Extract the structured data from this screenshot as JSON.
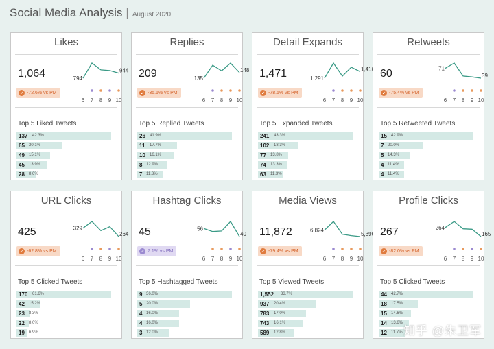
{
  "header": {
    "title": "Social Media Analysis",
    "separator": "|",
    "subtitle": "August 2020"
  },
  "colors": {
    "line": "#3a9a86",
    "dot_purple": "#9b8ad0",
    "dot_orange": "#e89a5e",
    "bar": "#d4e9e5",
    "badge_down": "#f8d9c6",
    "badge_up": "#e0d9f2"
  },
  "watermark": "知乎 @朱卫军",
  "chart_data": [
    {
      "type": "line",
      "title": "Likes",
      "value": "1,064",
      "change": "-72.6% vs PM",
      "direction": "down",
      "x": [
        "6",
        "7",
        "8",
        "9",
        "10"
      ],
      "y": [
        794,
        1240,
        1040,
        1020,
        944
      ],
      "first_label": "794",
      "last_label": "944",
      "dots": [
        "purple",
        "orange",
        "purple",
        "orange"
      ],
      "top_title": "Top 5 Liked Tweets",
      "bars": [
        {
          "value": "137",
          "pct": "42.3%",
          "share": 42.3
        },
        {
          "value": "65",
          "pct": "20.1%",
          "share": 20.1
        },
        {
          "value": "49",
          "pct": "15.1%",
          "share": 15.1
        },
        {
          "value": "45",
          "pct": "13.9%",
          "share": 13.9
        },
        {
          "value": "28",
          "pct": "8.6%",
          "share": 8.6
        }
      ]
    },
    {
      "type": "line",
      "title": "Replies",
      "value": "209",
      "change": "-35.1% vs PM",
      "direction": "down",
      "x": [
        "6",
        "7",
        "8",
        "9",
        "10"
      ],
      "y": [
        135,
        165,
        152,
        170,
        148
      ],
      "first_label": "135",
      "last_label": "148",
      "dots": [
        "purple",
        "orange",
        "orange",
        "orange"
      ],
      "top_title": "Top 5 Replied Tweets",
      "bars": [
        {
          "value": "26",
          "pct": "41.9%",
          "share": 41.9
        },
        {
          "value": "11",
          "pct": "17.7%",
          "share": 17.7
        },
        {
          "value": "10",
          "pct": "16.1%",
          "share": 16.1
        },
        {
          "value": "8",
          "pct": "12.9%",
          "share": 12.9
        },
        {
          "value": "7",
          "pct": "11.3%",
          "share": 11.3
        }
      ]
    },
    {
      "type": "line",
      "title": "Detail Expands",
      "value": "1,471",
      "change": "-78.5% vs PM",
      "direction": "down",
      "x": [
        "6",
        "7",
        "8",
        "9",
        "10"
      ],
      "y": [
        1291,
        1580,
        1330,
        1500,
        1416
      ],
      "first_label": "1,291",
      "last_label": "1,416",
      "dots": [
        "purple",
        "orange",
        "orange",
        "orange"
      ],
      "top_title": "Top 5 Expanded Tweets",
      "bars": [
        {
          "value": "241",
          "pct": "43.3%",
          "share": 43.3
        },
        {
          "value": "102",
          "pct": "18.3%",
          "share": 18.3
        },
        {
          "value": "77",
          "pct": "13.8%",
          "share": 13.8
        },
        {
          "value": "74",
          "pct": "13.3%",
          "share": 13.3
        },
        {
          "value": "63",
          "pct": "11.3%",
          "share": 11.3
        }
      ]
    },
    {
      "type": "line",
      "title": "Retweets",
      "value": "60",
      "change": "-75.4% vs PM",
      "direction": "down",
      "x": [
        "6",
        "7",
        "8",
        "9",
        "10"
      ],
      "y": [
        71,
        88,
        46,
        43,
        39
      ],
      "first_label": "71",
      "last_label": "39",
      "dots": [
        "purple",
        "orange",
        "orange",
        "orange"
      ],
      "top_title": "Top 5 Retweeted Tweets",
      "bars": [
        {
          "value": "15",
          "pct": "42.9%",
          "share": 42.9
        },
        {
          "value": "7",
          "pct": "20.0%",
          "share": 20.0
        },
        {
          "value": "5",
          "pct": "14.3%",
          "share": 14.3
        },
        {
          "value": "4",
          "pct": "11.4%",
          "share": 11.4
        },
        {
          "value": "4",
          "pct": "11.4%",
          "share": 11.4
        }
      ]
    },
    {
      "type": "line",
      "title": "URL Clicks",
      "value": "425",
      "change": "-62.8% vs PM",
      "direction": "down",
      "x": [
        "6",
        "7",
        "8",
        "9",
        "10"
      ],
      "y": [
        329,
        380,
        310,
        340,
        264
      ],
      "first_label": "329",
      "last_label": "264",
      "dots": [
        "purple",
        "orange",
        "purple",
        "orange"
      ],
      "top_title": "Top 5 Clicked Tweets",
      "bars": [
        {
          "value": "170",
          "pct": "61.6%",
          "share": 61.6
        },
        {
          "value": "42",
          "pct": "15.2%",
          "share": 15.2
        },
        {
          "value": "23",
          "pct": "8.3%",
          "share": 8.3
        },
        {
          "value": "22",
          "pct": "8.0%",
          "share": 8.0
        },
        {
          "value": "19",
          "pct": "6.9%",
          "share": 6.9
        }
      ]
    },
    {
      "type": "line",
      "title": "Hashtag Clicks",
      "value": "45",
      "change": "7.1% vs PM",
      "direction": "up",
      "x": [
        "6",
        "7",
        "8",
        "9",
        "10"
      ],
      "y": [
        56,
        50,
        51,
        70,
        40
      ],
      "first_label": "56",
      "last_label": "40",
      "dots": [
        "orange",
        "orange",
        "purple",
        "orange"
      ],
      "top_title": "Top 5 Hashtagged Tweets",
      "bars": [
        {
          "value": "9",
          "pct": "36.0%",
          "share": 36.0
        },
        {
          "value": "5",
          "pct": "20.0%",
          "share": 20.0
        },
        {
          "value": "4",
          "pct": "16.0%",
          "share": 16.0
        },
        {
          "value": "4",
          "pct": "16.0%",
          "share": 16.0
        },
        {
          "value": "3",
          "pct": "12.0%",
          "share": 12.0
        }
      ]
    },
    {
      "type": "line",
      "title": "Media Views",
      "value": "11,872",
      "change": "-79.4% vs PM",
      "direction": "down",
      "x": [
        "6",
        "7",
        "8",
        "9",
        "10"
      ],
      "y": [
        6824,
        8700,
        5900,
        5600,
        5396
      ],
      "first_label": "6,824",
      "last_label": "5,396",
      "dots": [
        "purple",
        "orange",
        "orange",
        "orange"
      ],
      "top_title": "Top 5 Viewed Tweets",
      "bars": [
        {
          "value": "1,552",
          "pct": "33.7%",
          "share": 33.7
        },
        {
          "value": "937",
          "pct": "20.4%",
          "share": 20.4
        },
        {
          "value": "783",
          "pct": "17.0%",
          "share": 17.0
        },
        {
          "value": "743",
          "pct": "16.1%",
          "share": 16.1
        },
        {
          "value": "589",
          "pct": "12.8%",
          "share": 12.8
        }
      ]
    },
    {
      "type": "line",
      "title": "Profile Clicks",
      "value": "267",
      "change": "-82.0% vs PM",
      "direction": "down",
      "x": [
        "6",
        "7",
        "8",
        "9",
        "10"
      ],
      "y": [
        264,
        330,
        250,
        245,
        165
      ],
      "first_label": "264",
      "last_label": "165",
      "dots": [
        "purple",
        "orange",
        "purple",
        "orange"
      ],
      "top_title": "Top 5 Clicked Tweets",
      "bars": [
        {
          "value": "44",
          "pct": "42.7%",
          "share": 42.7
        },
        {
          "value": "18",
          "pct": "17.5%",
          "share": 17.5
        },
        {
          "value": "15",
          "pct": "14.6%",
          "share": 14.6
        },
        {
          "value": "14",
          "pct": "13.6%",
          "share": 13.6
        },
        {
          "value": "12",
          "pct": "11.7%",
          "share": 11.7
        }
      ]
    }
  ]
}
